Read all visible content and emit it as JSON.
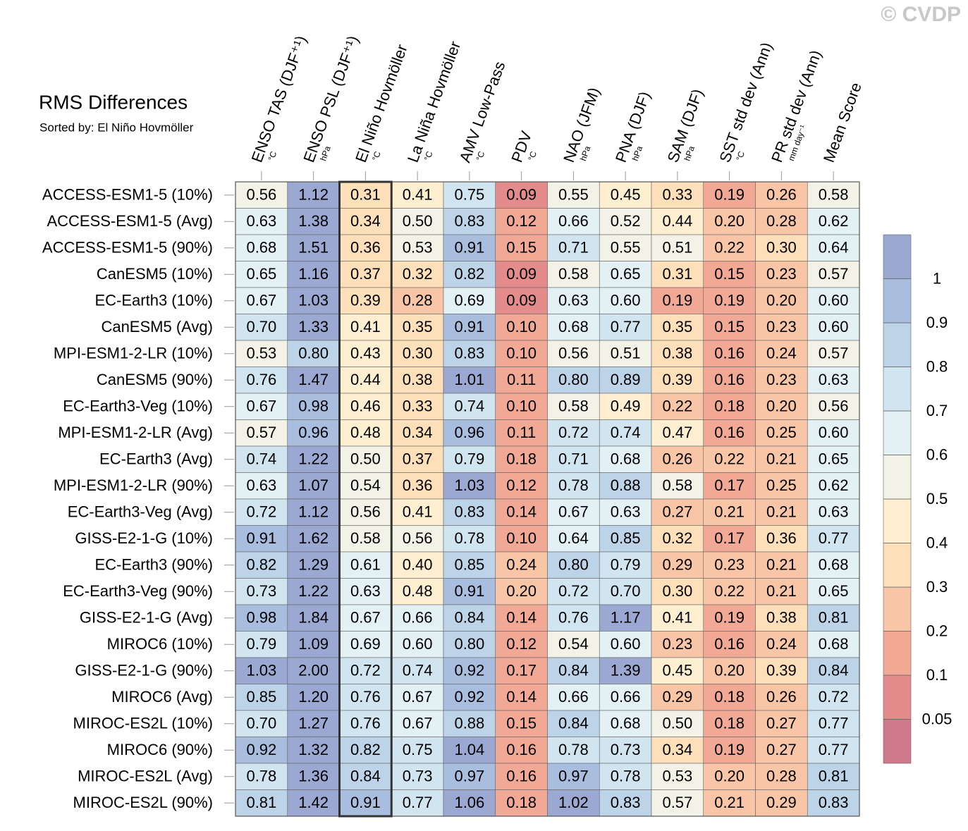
{
  "chart_data": {
    "type": "heatmap",
    "title": "RMS Differences",
    "subtitle": "Sorted by: El Niño Hovmöller",
    "watermark": "© CVDP",
    "columns": [
      "ENSO TAS (DJF⁺¹)",
      "ENSO PSL (DJF⁺¹)",
      "El Niño Hovmöller",
      "La Niña Hovmöller",
      "AMV Low-Pass",
      "PDV",
      "NAO (JFM)",
      "PNA (DJF)",
      "SAM (DJF)",
      "SST std dev (Ann)",
      "PR std dev (Ann)",
      "Mean Score"
    ],
    "column_units": [
      "°C",
      "hPa",
      "°C",
      "°C",
      "°C",
      "°C",
      "hPa",
      "hPa",
      "hPa",
      "°C",
      "mm day⁻¹",
      null
    ],
    "highlight_column": 2,
    "rows": [
      "ACCESS-ESM1-5 (10%)",
      "ACCESS-ESM1-5 (Avg)",
      "ACCESS-ESM1-5 (90%)",
      "CanESM5 (10%)",
      "EC-Earth3 (10%)",
      "CanESM5 (Avg)",
      "MPI-ESM1-2-LR (10%)",
      "CanESM5 (90%)",
      "EC-Earth3-Veg (10%)",
      "MPI-ESM1-2-LR (Avg)",
      "EC-Earth3 (Avg)",
      "MPI-ESM1-2-LR (90%)",
      "EC-Earth3-Veg (Avg)",
      "GISS-E2-1-G (10%)",
      "EC-Earth3 (90%)",
      "EC-Earth3-Veg (90%)",
      "GISS-E2-1-G (Avg)",
      "MIROC6 (10%)",
      "GISS-E2-1-G (90%)",
      "MIROC6 (Avg)",
      "MIROC-ES2L (10%)",
      "MIROC6 (90%)",
      "MIROC-ES2L (Avg)",
      "MIROC-ES2L (90%)"
    ],
    "values": [
      [
        0.56,
        1.12,
        0.31,
        0.41,
        0.75,
        0.09,
        0.55,
        0.45,
        0.33,
        0.19,
        0.26,
        0.58
      ],
      [
        0.63,
        1.38,
        0.34,
        0.5,
        0.83,
        0.12,
        0.66,
        0.52,
        0.44,
        0.2,
        0.28,
        0.62
      ],
      [
        0.68,
        1.51,
        0.36,
        0.53,
        0.91,
        0.15,
        0.71,
        0.55,
        0.51,
        0.22,
        0.3,
        0.64
      ],
      [
        0.65,
        1.16,
        0.37,
        0.32,
        0.82,
        0.09,
        0.58,
        0.65,
        0.31,
        0.15,
        0.23,
        0.57
      ],
      [
        0.67,
        1.03,
        0.39,
        0.28,
        0.69,
        0.09,
        0.63,
        0.6,
        0.19,
        0.19,
        0.2,
        0.6
      ],
      [
        0.7,
        1.33,
        0.41,
        0.35,
        0.91,
        0.1,
        0.68,
        0.77,
        0.35,
        0.15,
        0.23,
        0.6
      ],
      [
        0.53,
        0.8,
        0.43,
        0.3,
        0.83,
        0.1,
        0.56,
        0.51,
        0.38,
        0.16,
        0.24,
        0.57
      ],
      [
        0.76,
        1.47,
        0.44,
        0.38,
        1.01,
        0.11,
        0.8,
        0.89,
        0.39,
        0.16,
        0.23,
        0.63
      ],
      [
        0.67,
        0.98,
        0.46,
        0.33,
        0.74,
        0.1,
        0.58,
        0.49,
        0.22,
        0.18,
        0.2,
        0.56
      ],
      [
        0.57,
        0.96,
        0.48,
        0.34,
        0.96,
        0.11,
        0.72,
        0.74,
        0.47,
        0.16,
        0.25,
        0.6
      ],
      [
        0.74,
        1.22,
        0.5,
        0.37,
        0.79,
        0.18,
        0.71,
        0.68,
        0.26,
        0.22,
        0.21,
        0.65
      ],
      [
        0.63,
        1.07,
        0.54,
        0.36,
        1.03,
        0.12,
        0.78,
        0.88,
        0.58,
        0.17,
        0.25,
        0.62
      ],
      [
        0.72,
        1.12,
        0.56,
        0.41,
        0.83,
        0.14,
        0.67,
        0.63,
        0.27,
        0.21,
        0.21,
        0.63
      ],
      [
        0.91,
        1.62,
        0.58,
        0.56,
        0.78,
        0.1,
        0.64,
        0.85,
        0.32,
        0.17,
        0.36,
        0.77
      ],
      [
        0.82,
        1.29,
        0.61,
        0.4,
        0.85,
        0.24,
        0.8,
        0.79,
        0.29,
        0.23,
        0.21,
        0.68
      ],
      [
        0.73,
        1.22,
        0.63,
        0.48,
        0.91,
        0.2,
        0.72,
        0.7,
        0.3,
        0.22,
        0.21,
        0.65
      ],
      [
        0.98,
        1.84,
        0.67,
        0.66,
        0.84,
        0.14,
        0.76,
        1.17,
        0.41,
        0.19,
        0.38,
        0.81
      ],
      [
        0.79,
        1.09,
        0.69,
        0.6,
        0.8,
        0.12,
        0.54,
        0.6,
        0.23,
        0.16,
        0.24,
        0.68
      ],
      [
        1.03,
        2.0,
        0.72,
        0.74,
        0.92,
        0.17,
        0.84,
        1.39,
        0.45,
        0.2,
        0.39,
        0.84
      ],
      [
        0.85,
        1.2,
        0.76,
        0.67,
        0.92,
        0.14,
        0.66,
        0.66,
        0.29,
        0.18,
        0.26,
        0.72
      ],
      [
        0.7,
        1.27,
        0.76,
        0.67,
        0.88,
        0.15,
        0.84,
        0.68,
        0.5,
        0.18,
        0.27,
        0.77
      ],
      [
        0.92,
        1.32,
        0.82,
        0.75,
        1.04,
        0.16,
        0.78,
        0.73,
        0.34,
        0.19,
        0.27,
        0.77
      ],
      [
        0.78,
        1.36,
        0.84,
        0.73,
        0.97,
        0.16,
        0.97,
        0.78,
        0.53,
        0.2,
        0.28,
        0.81
      ],
      [
        0.81,
        1.42,
        0.91,
        0.77,
        1.06,
        0.18,
        1.02,
        0.83,
        0.57,
        0.21,
        0.29,
        0.83
      ]
    ],
    "value_labels": [
      [
        "0.56",
        "1.12",
        "0.31",
        "0.41",
        "0.75",
        "0.09",
        "0.55",
        "0.45",
        "0.33",
        "0.19",
        "0.26",
        "0.58"
      ],
      [
        "0.63",
        "1.38",
        "0.34",
        "0.50",
        "0.83",
        "0.12",
        "0.66",
        "0.52",
        "0.44",
        "0.20",
        "0.28",
        "0.62"
      ],
      [
        "0.68",
        "1.51",
        "0.36",
        "0.53",
        "0.91",
        "0.15",
        "0.71",
        "0.55",
        "0.51",
        "0.22",
        "0.30",
        "0.64"
      ],
      [
        "0.65",
        "1.16",
        "0.37",
        "0.32",
        "0.82",
        "0.09",
        "0.58",
        "0.65",
        "0.31",
        "0.15",
        "0.23",
        "0.57"
      ],
      [
        "0.67",
        "1.03",
        "0.39",
        "0.28",
        "0.69",
        "0.09",
        "0.63",
        "0.60",
        "0.19",
        "0.19",
        "0.20",
        "0.60"
      ],
      [
        "0.70",
        "1.33",
        "0.41",
        "0.35",
        "0.91",
        "0.10",
        "0.68",
        "0.77",
        "0.35",
        "0.15",
        "0.23",
        "0.60"
      ],
      [
        "0.53",
        "0.80",
        "0.43",
        "0.30",
        "0.83",
        "0.10",
        "0.56",
        "0.51",
        "0.38",
        "0.16",
        "0.24",
        "0.57"
      ],
      [
        "0.76",
        "1.47",
        "0.44",
        "0.38",
        "1.01",
        "0.11",
        "0.80",
        "0.89",
        "0.39",
        "0.16",
        "0.23",
        "0.63"
      ],
      [
        "0.67",
        "0.98",
        "0.46",
        "0.33",
        "0.74",
        "0.10",
        "0.58",
        "0.49",
        "0.22",
        "0.18",
        "0.20",
        "0.56"
      ],
      [
        "0.57",
        "0.96",
        "0.48",
        "0.34",
        "0.96",
        "0.11",
        "0.72",
        "0.74",
        "0.47",
        "0.16",
        "0.25",
        "0.60"
      ],
      [
        "0.74",
        "1.22",
        "0.50",
        "0.37",
        "0.79",
        "0.18",
        "0.71",
        "0.68",
        "0.26",
        "0.22",
        "0.21",
        "0.65"
      ],
      [
        "0.63",
        "1.07",
        "0.54",
        "0.36",
        "1.03",
        "0.12",
        "0.78",
        "0.88",
        "0.58",
        "0.17",
        "0.25",
        "0.62"
      ],
      [
        "0.72",
        "1.12",
        "0.56",
        "0.41",
        "0.83",
        "0.14",
        "0.67",
        "0.63",
        "0.27",
        "0.21",
        "0.21",
        "0.63"
      ],
      [
        "0.91",
        "1.62",
        "0.58",
        "0.56",
        "0.78",
        "0.10",
        "0.64",
        "0.85",
        "0.32",
        "0.17",
        "0.36",
        "0.77"
      ],
      [
        "0.82",
        "1.29",
        "0.61",
        "0.40",
        "0.85",
        "0.24",
        "0.80",
        "0.79",
        "0.29",
        "0.23",
        "0.21",
        "0.68"
      ],
      [
        "0.73",
        "1.22",
        "0.63",
        "0.48",
        "0.91",
        "0.20",
        "0.72",
        "0.70",
        "0.30",
        "0.22",
        "0.21",
        "0.65"
      ],
      [
        "0.98",
        "1.84",
        "0.67",
        "0.66",
        "0.84",
        "0.14",
        "0.76",
        "1.17",
        "0.41",
        "0.19",
        "0.38",
        "0.81"
      ],
      [
        "0.79",
        "1.09",
        "0.69",
        "0.60",
        "0.80",
        "0.12",
        "0.54",
        "0.60",
        "0.23",
        "0.16",
        "0.24",
        "0.68"
      ],
      [
        "1.03",
        "2.00",
        "0.72",
        "0.74",
        "0.92",
        "0.17",
        "0.84",
        "1.39",
        "0.45",
        "0.20",
        "0.39",
        "0.84"
      ],
      [
        "0.85",
        "1.20",
        "0.76",
        "0.67",
        "0.92",
        "0.14",
        "0.66",
        "0.66",
        "0.29",
        "0.18",
        "0.26",
        "0.72"
      ],
      [
        "0.70",
        "1.27",
        "0.76",
        "0.67",
        "0.88",
        "0.15",
        "0.84",
        "0.68",
        "0.50",
        "0.18",
        "0.27",
        "0.77"
      ],
      [
        "0.92",
        "1.32",
        "0.82",
        "0.75",
        "1.04",
        "0.16",
        "0.78",
        "0.73",
        "0.34",
        "0.19",
        "0.27",
        "0.77"
      ],
      [
        "0.78",
        "1.36",
        "0.84",
        "0.73",
        "0.97",
        "0.16",
        "0.97",
        "0.78",
        "0.53",
        "0.20",
        "0.28",
        "0.81"
      ],
      [
        "0.81",
        "1.42",
        "0.91",
        "0.77",
        "1.06",
        "0.18",
        "1.02",
        "0.83",
        "0.57",
        "0.21",
        "0.29",
        "0.83"
      ]
    ],
    "levels": [
      0.05,
      0.1,
      0.2,
      0.3,
      0.4,
      0.5,
      0.6,
      0.7,
      0.8,
      0.9,
      1
    ],
    "colors": [
      "#d1798c",
      "#e38c8b",
      "#f1a996",
      "#f8c6a7",
      "#fde0b9",
      "#fdefd0",
      "#f3f2e6",
      "#e3f0f4",
      "#d0e5f0",
      "#bcd3e8",
      "#a9bedf",
      "#9aa8d2"
    ]
  }
}
